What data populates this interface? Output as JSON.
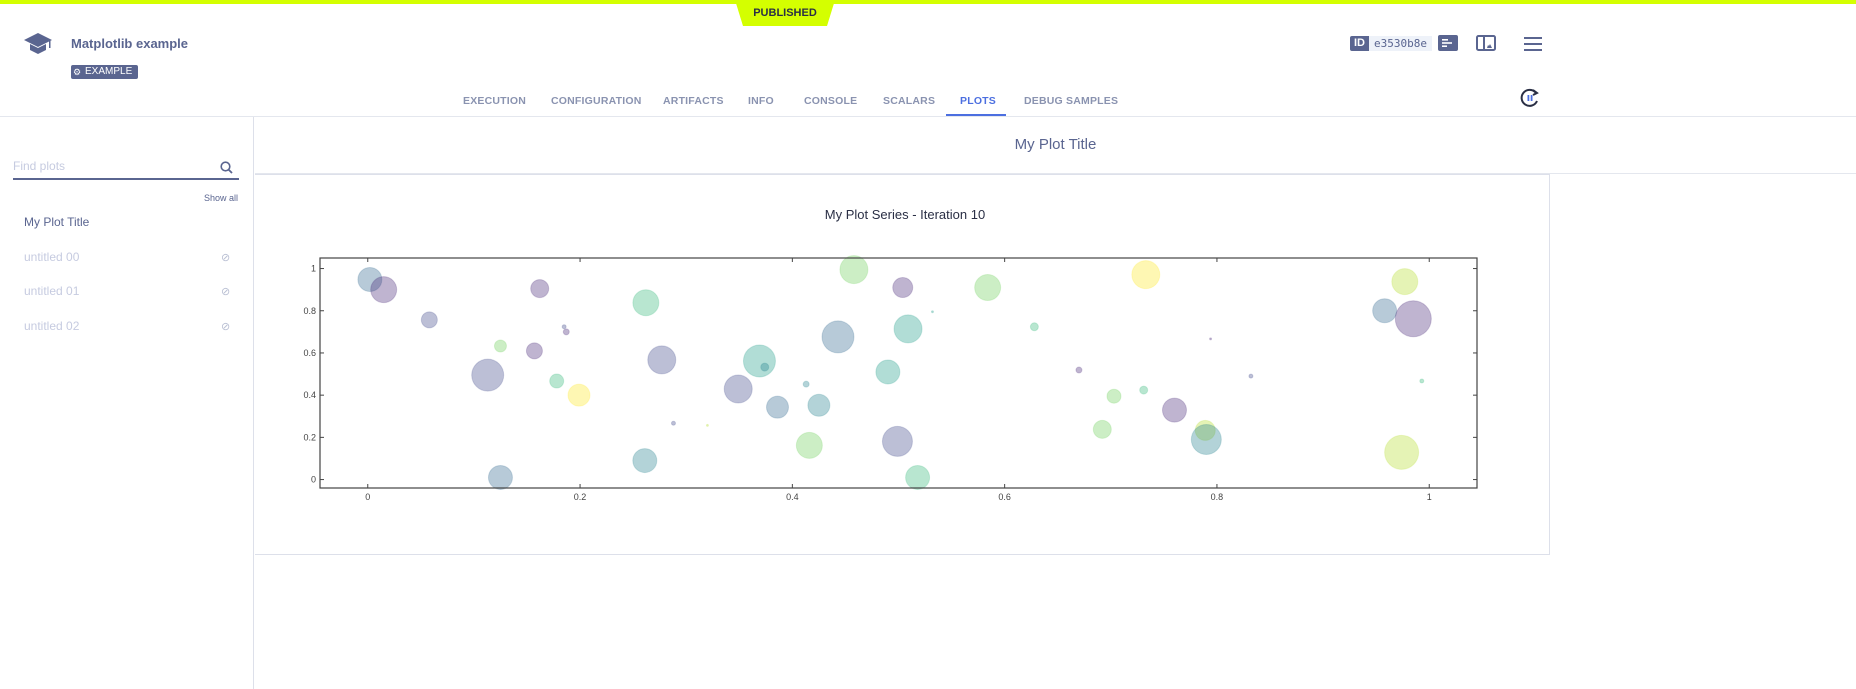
{
  "header": {
    "status": "PUBLISHED",
    "title": "Matplotlib example",
    "badge": "EXAMPLE",
    "id_label": "ID",
    "id_value": "e3530b8e"
  },
  "tabs": [
    {
      "label": "EXECUTION"
    },
    {
      "label": "CONFIGURATION"
    },
    {
      "label": "ARTIFACTS"
    },
    {
      "label": "INFO"
    },
    {
      "label": "CONSOLE"
    },
    {
      "label": "SCALARS"
    },
    {
      "label": "PLOTS",
      "active": true
    },
    {
      "label": "DEBUG SAMPLES"
    }
  ],
  "sidebar": {
    "search_placeholder": "Find plots",
    "show_all": "Show all",
    "items": [
      {
        "label": "My Plot Title",
        "visible": true
      },
      {
        "label": "untitled 00",
        "visible": false
      },
      {
        "label": "untitled 01",
        "visible": false
      },
      {
        "label": "untitled 02",
        "visible": false
      }
    ]
  },
  "panel": {
    "title": "My Plot Title"
  },
  "colors": {
    "accent": "#4c6fe0",
    "brand": "#5a6590",
    "status": "#d4ff00"
  },
  "chart_data": {
    "type": "scatter",
    "title": "My Plot Series - Iteration 10",
    "xlabel": "",
    "ylabel": "",
    "xlim": [
      -0.045,
      1.045
    ],
    "ylim": [
      -0.04,
      1.05
    ],
    "xticks": [
      "0",
      "0.2",
      "0.4",
      "0.6",
      "0.8",
      "1"
    ],
    "yticks": [
      "0",
      "0.2",
      "0.4",
      "0.6",
      "0.8",
      "1"
    ],
    "grid": false,
    "opacity": 0.35,
    "points": [
      {
        "x": 0.002,
        "y": 0.948,
        "size": 12,
        "color": "#31688e"
      },
      {
        "x": 0.015,
        "y": 0.9,
        "size": 13,
        "color": "#482878"
      },
      {
        "x": 0.058,
        "y": 0.757,
        "size": 8,
        "color": "#3e4989"
      },
      {
        "x": 0.162,
        "y": 0.905,
        "size": 9,
        "color": "#482878"
      },
      {
        "x": 0.125,
        "y": 0.633,
        "size": 6,
        "color": "#6ece58"
      },
      {
        "x": 0.157,
        "y": 0.61,
        "size": 8,
        "color": "#482878"
      },
      {
        "x": 0.185,
        "y": 0.724,
        "size": 2,
        "color": "#3e4989"
      },
      {
        "x": 0.187,
        "y": 0.7,
        "size": 3,
        "color": "#482878"
      },
      {
        "x": 0.113,
        "y": 0.495,
        "size": 16,
        "color": "#3e4989"
      },
      {
        "x": 0.178,
        "y": 0.467,
        "size": 7,
        "color": "#35b779"
      },
      {
        "x": 0.199,
        "y": 0.4,
        "size": 11,
        "color": "#fde725"
      },
      {
        "x": 0.262,
        "y": 0.838,
        "size": 13,
        "color": "#35b779"
      },
      {
        "x": 0.277,
        "y": 0.567,
        "size": 14,
        "color": "#3e4989"
      },
      {
        "x": 0.369,
        "y": 0.562,
        "size": 16,
        "color": "#1f9e89"
      },
      {
        "x": 0.374,
        "y": 0.533,
        "size": 4,
        "color": "#26828e"
      },
      {
        "x": 0.349,
        "y": 0.429,
        "size": 14,
        "color": "#3e4989"
      },
      {
        "x": 0.288,
        "y": 0.267,
        "size": 2,
        "color": "#3e4989"
      },
      {
        "x": 0.32,
        "y": 0.257,
        "size": 1,
        "color": "#b5de2b"
      },
      {
        "x": 0.125,
        "y": 0.01,
        "size": 12,
        "color": "#31688e"
      },
      {
        "x": 0.261,
        "y": 0.09,
        "size": 12,
        "color": "#26828e"
      },
      {
        "x": 0.386,
        "y": 0.343,
        "size": 11,
        "color": "#31688e"
      },
      {
        "x": 0.413,
        "y": 0.452,
        "size": 3,
        "color": "#26828e"
      },
      {
        "x": 0.425,
        "y": 0.352,
        "size": 11,
        "color": "#26828e"
      },
      {
        "x": 0.416,
        "y": 0.162,
        "size": 13,
        "color": "#6ece58"
      },
      {
        "x": 0.443,
        "y": 0.676,
        "size": 16,
        "color": "#31688e"
      },
      {
        "x": 0.458,
        "y": 0.995,
        "size": 14,
        "color": "#6ece58"
      },
      {
        "x": 0.504,
        "y": 0.91,
        "size": 10,
        "color": "#482878"
      },
      {
        "x": 0.509,
        "y": 0.714,
        "size": 14,
        "color": "#1f9e89"
      },
      {
        "x": 0.49,
        "y": 0.51,
        "size": 12,
        "color": "#1f9e89"
      },
      {
        "x": 0.499,
        "y": 0.181,
        "size": 15,
        "color": "#3e4989"
      },
      {
        "x": 0.518,
        "y": 0.01,
        "size": 12,
        "color": "#35b779"
      },
      {
        "x": 0.532,
        "y": 0.795,
        "size": 1,
        "color": "#1f9e89"
      },
      {
        "x": 0.584,
        "y": 0.91,
        "size": 13,
        "color": "#6ece58"
      },
      {
        "x": 0.628,
        "y": 0.724,
        "size": 4,
        "color": "#35b779"
      },
      {
        "x": 0.67,
        "y": 0.519,
        "size": 3,
        "color": "#482878"
      },
      {
        "x": 0.703,
        "y": 0.395,
        "size": 7,
        "color": "#6ece58"
      },
      {
        "x": 0.731,
        "y": 0.424,
        "size": 4,
        "color": "#35b779"
      },
      {
        "x": 0.692,
        "y": 0.238,
        "size": 9,
        "color": "#6ece58"
      },
      {
        "x": 0.733,
        "y": 0.971,
        "size": 14,
        "color": "#fde725"
      },
      {
        "x": 0.76,
        "y": 0.329,
        "size": 12,
        "color": "#482878"
      },
      {
        "x": 0.789,
        "y": 0.233,
        "size": 10,
        "color": "#b5de2b"
      },
      {
        "x": 0.79,
        "y": 0.19,
        "size": 15,
        "color": "#26828e"
      },
      {
        "x": 0.794,
        "y": 0.667,
        "size": 1,
        "color": "#482878"
      },
      {
        "x": 0.832,
        "y": 0.49,
        "size": 2,
        "color": "#3e4989"
      },
      {
        "x": 0.958,
        "y": 0.8,
        "size": 12,
        "color": "#31688e"
      },
      {
        "x": 0.985,
        "y": 0.762,
        "size": 18,
        "color": "#482878"
      },
      {
        "x": 0.977,
        "y": 0.938,
        "size": 13,
        "color": "#b5de2b"
      },
      {
        "x": 0.993,
        "y": 0.467,
        "size": 2,
        "color": "#35b779"
      },
      {
        "x": 0.974,
        "y": 0.129,
        "size": 17,
        "color": "#b5de2b"
      }
    ]
  }
}
